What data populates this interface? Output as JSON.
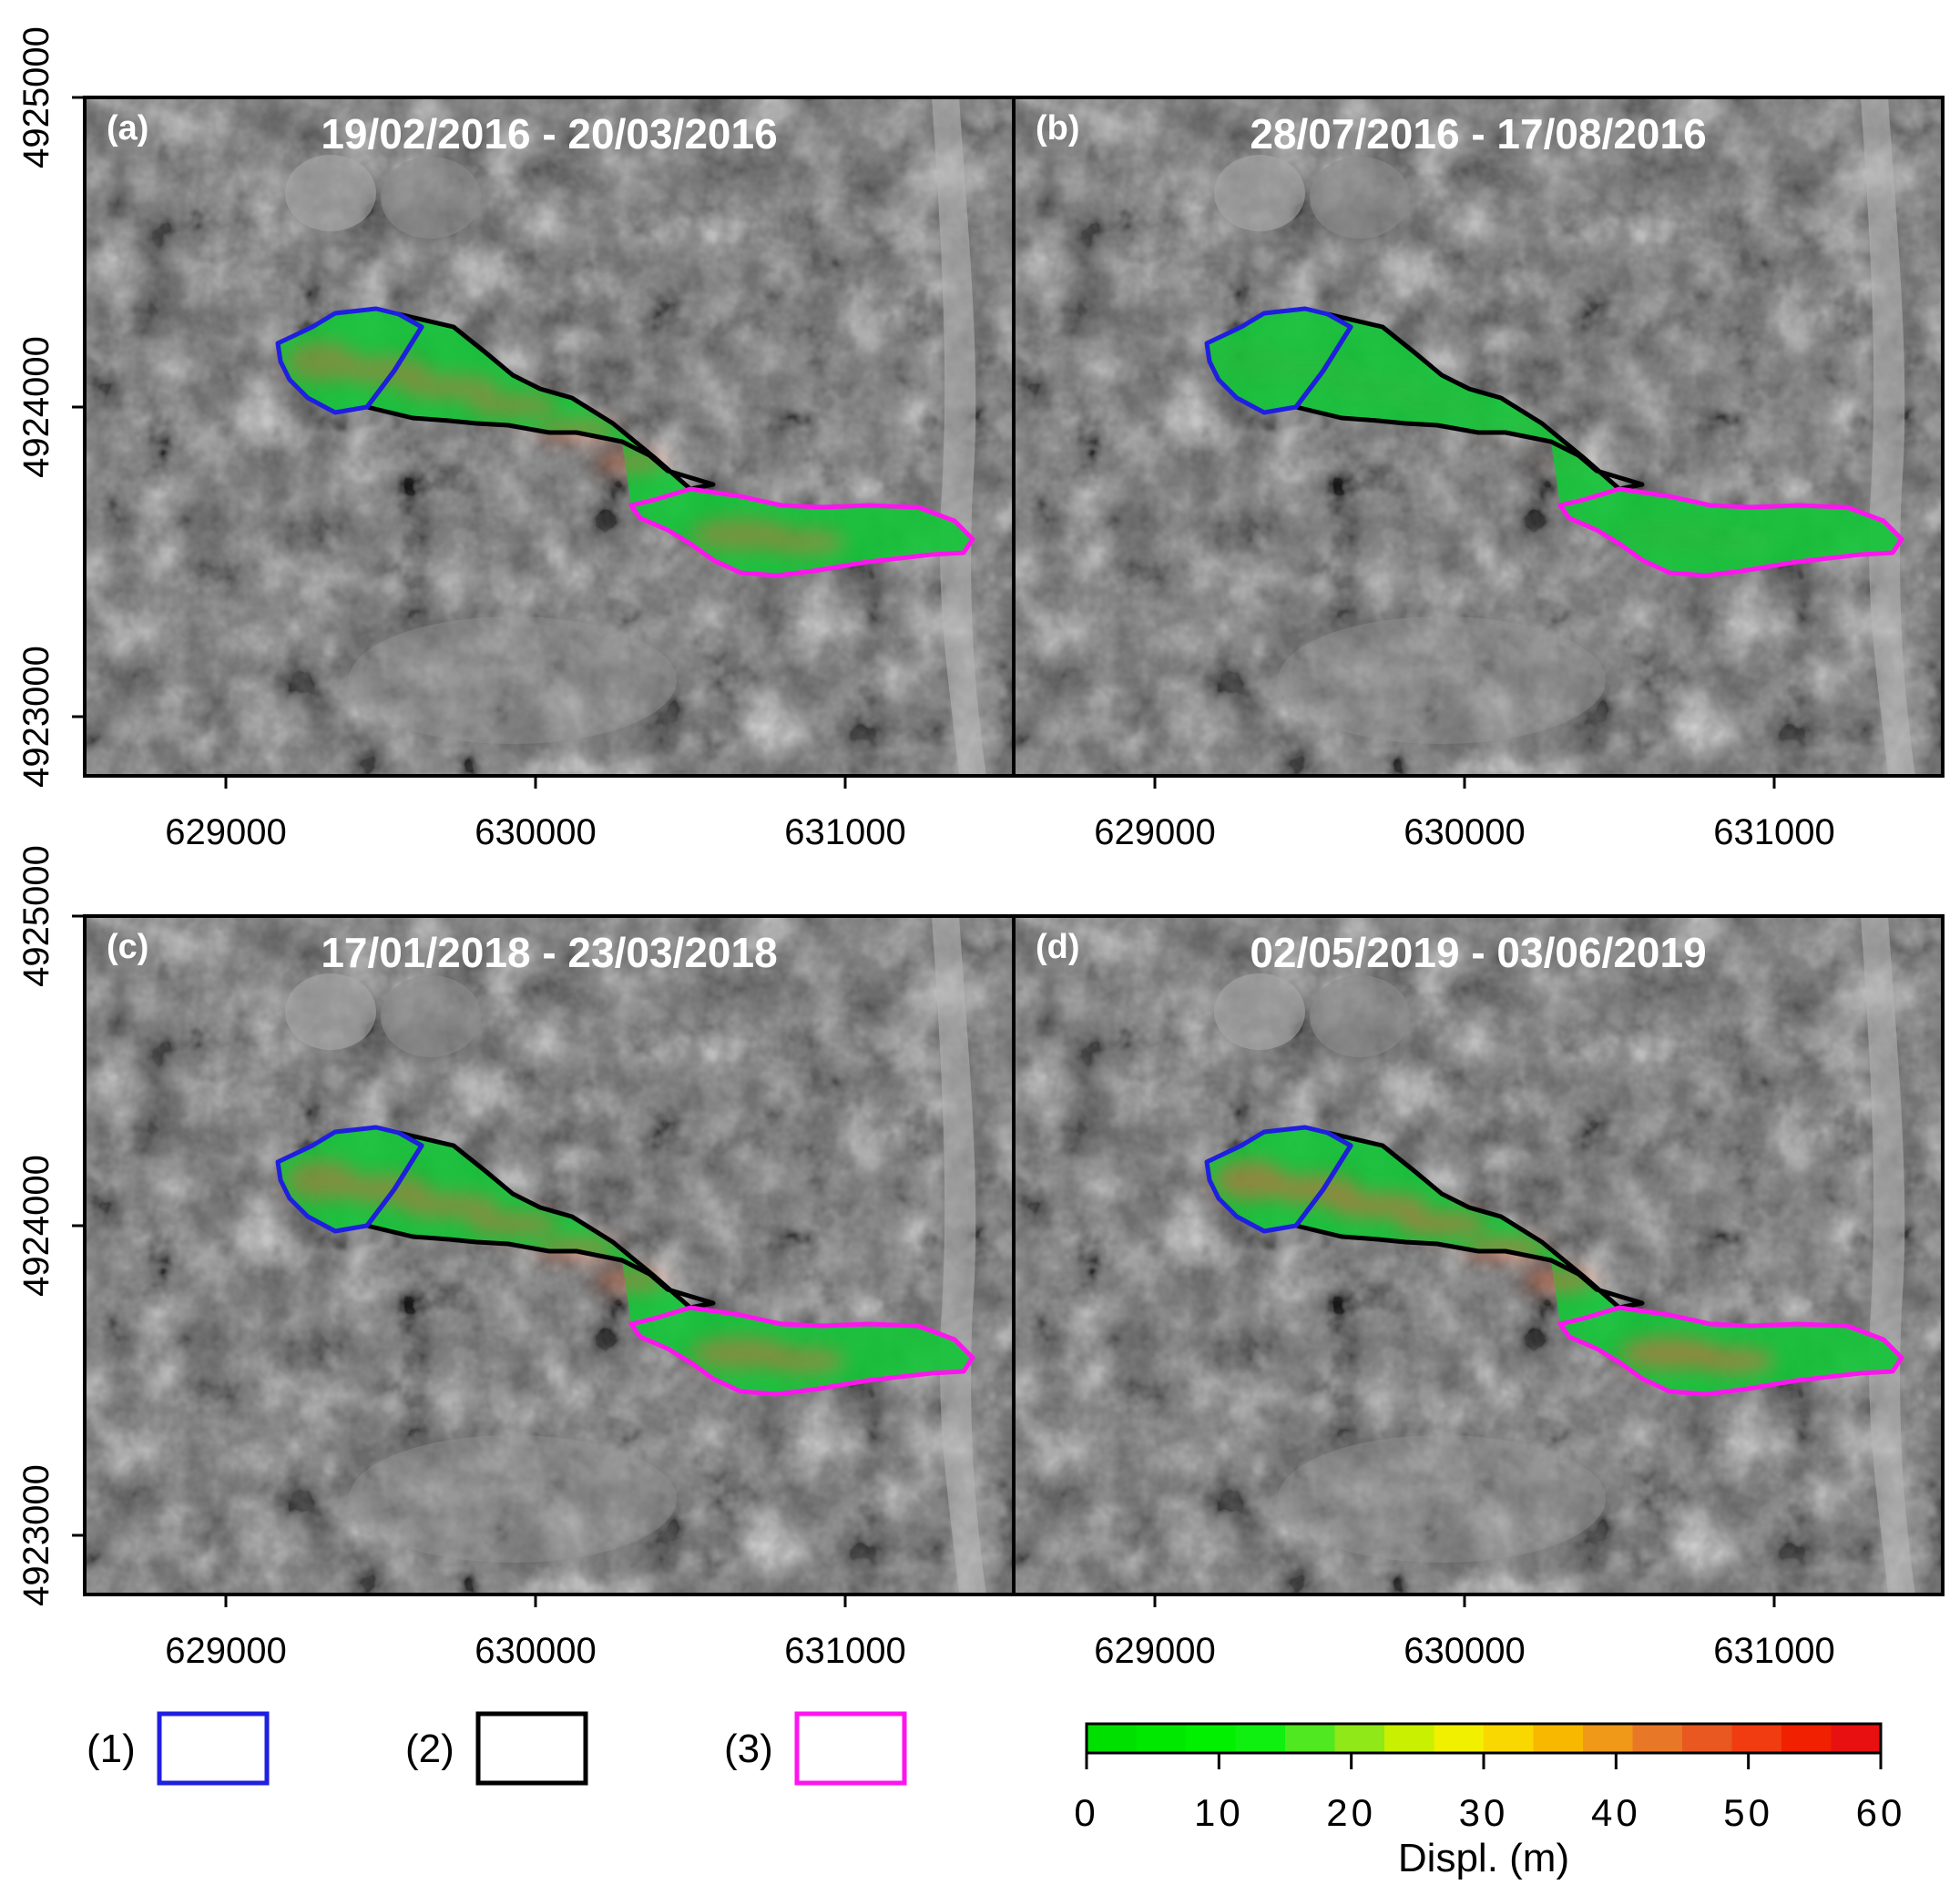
{
  "panels": [
    {
      "letter": "(a)",
      "dates": "19/02/2016 - 20/03/2016",
      "hotspot_level": 0.55
    },
    {
      "letter": "(b)",
      "dates": "28/07/2016 - 17/08/2016",
      "hotspot_level": 0.05
    },
    {
      "letter": "(c)",
      "dates": "17/01/2018 - 23/03/2018",
      "hotspot_level": 0.6
    },
    {
      "letter": "(d)",
      "dates": "02/05/2019 - 03/06/2019",
      "hotspot_level": 0.7
    }
  ],
  "axes": {
    "x_ticks": [
      "629000",
      "630000",
      "631000"
    ],
    "y_ticks": [
      "4925000",
      "4924000",
      "4923000"
    ]
  },
  "legend": {
    "items": [
      {
        "label": "(1)",
        "color": "#1f1fe0"
      },
      {
        "label": "(2)",
        "color": "#000000"
      },
      {
        "label": "(3)",
        "color": "#ff14f0"
      }
    ]
  },
  "colorbar": {
    "title": "Displ. (m)",
    "ticks": [
      "0",
      "10",
      "20",
      "30",
      "40",
      "50",
      "60"
    ],
    "range": [
      0,
      60
    ],
    "colors": [
      "#00e000",
      "#00e800",
      "#00f000",
      "#10f010",
      "#50e820",
      "#90e818",
      "#c8f000",
      "#f0f000",
      "#f8d800",
      "#f8b800",
      "#f09818",
      "#e87828",
      "#e85820",
      "#f03c10",
      "#f02000",
      "#e81010"
    ]
  },
  "colors": {
    "zone1": "#1f1fe0",
    "zone2": "#000000",
    "zone3": "#ff14f0",
    "fill": "#16c43a",
    "hot": "#d8663e"
  }
}
